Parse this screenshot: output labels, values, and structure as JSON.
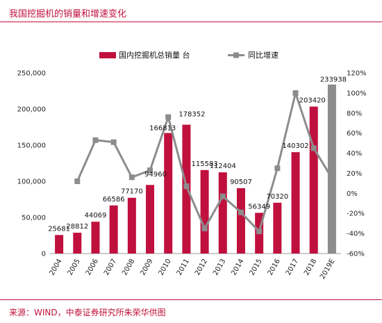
{
  "page": {
    "title": "我国挖掘机的销量和增速变化",
    "source": "来源：WIND，中泰证券研究所朱荣华供图"
  },
  "colors": {
    "bar": "#c0103e",
    "bar_forecast": "#8c8c8c",
    "line": "#8c8c8c",
    "accent": "#c0103e"
  },
  "chart_data": {
    "type": "bar",
    "categories": [
      "2004",
      "2005",
      "2006",
      "2007",
      "2008",
      "2009",
      "2010",
      "2011",
      "2012",
      "2013",
      "2014",
      "2015",
      "2016",
      "2017",
      "2018",
      "2019E"
    ],
    "series": [
      {
        "name": "国内挖掘机总销量 台",
        "type": "bar",
        "axis": "left",
        "values": [
          25681,
          28812,
          44069,
          66586,
          77170,
          94960,
          166813,
          178352,
          115583,
          112404,
          90507,
          56349,
          70320,
          140302,
          203420,
          233938
        ],
        "labels": [
          "25681",
          "28812",
          "44069",
          "66586",
          "77170",
          "94960",
          "166813",
          "178352",
          "115583",
          "112404",
          "90507",
          "56349",
          "70320",
          "140302",
          "203420",
          "233938"
        ]
      },
      {
        "name": "同比增速",
        "type": "line",
        "axis": "right",
        "values": [
          null,
          12,
          53,
          51,
          16,
          23,
          76,
          7,
          -35,
          -3,
          -19,
          -38,
          25,
          100,
          45,
          15
        ]
      }
    ],
    "y_left": {
      "min": 0,
      "max": 250000,
      "ticks": [
        "0",
        "50,000",
        "100,000",
        "150,000",
        "200,000",
        "250,000"
      ]
    },
    "y_right": {
      "min": -60,
      "max": 120,
      "ticks": [
        "-60%",
        "-40%",
        "-20%",
        "0%",
        "20%",
        "40%",
        "60%",
        "80%",
        "100%",
        "120%"
      ]
    },
    "legend": {
      "position": "top"
    },
    "grid": false
  }
}
